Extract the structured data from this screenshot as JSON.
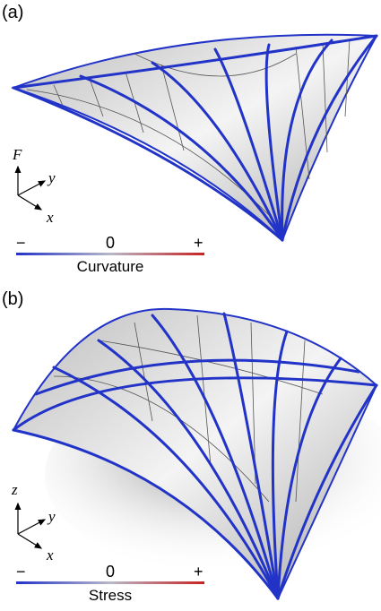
{
  "panels": [
    {
      "label": "(a)",
      "axes": {
        "up": "F",
        "y": "y",
        "x": "x"
      },
      "colorbar": {
        "minus": "−",
        "zero": "0",
        "plus": "+",
        "title": "Curvature"
      }
    },
    {
      "label": "(b)",
      "axes": {
        "up": "z",
        "y": "y",
        "x": "x"
      },
      "colorbar": {
        "minus": "−",
        "zero": "0",
        "plus": "+",
        "title": "Stress"
      }
    }
  ]
}
